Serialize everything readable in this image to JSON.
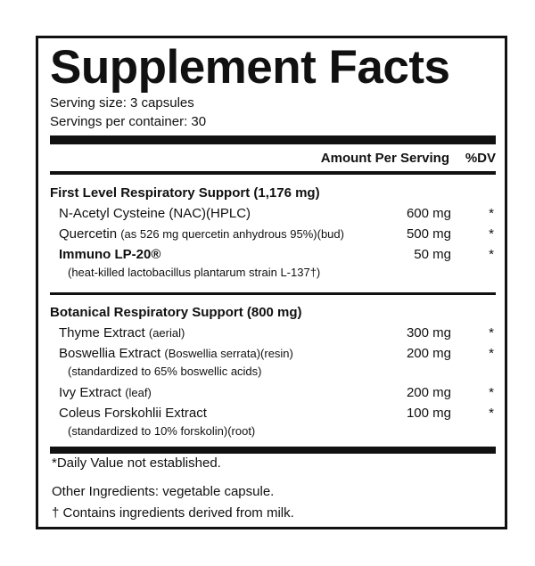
{
  "header": {
    "title": "Supplement Facts",
    "serving_size": "Serving size: 3 capsules",
    "servings_per_container": "Servings per container: 30"
  },
  "columns": {
    "amount": "Amount Per Serving",
    "dv": "%DV"
  },
  "sections": [
    {
      "title": "First Level Respiratory Support (1,176 mg)",
      "items": [
        {
          "name": "N-Acetyl Cysteine (NAC)(HPLC)",
          "amount": "600 mg",
          "dv": "*"
        },
        {
          "name": "Quercetin",
          "note": "(as 526 mg quercetin anhydrous 95%)(bud)",
          "amount": "500 mg",
          "dv": "*"
        },
        {
          "name": "Immuno LP-20®",
          "detail": "(heat-killed lactobacillus plantarum strain L-137†)",
          "amount": "50 mg",
          "dv": "*"
        }
      ]
    },
    {
      "title": "Botanical Respiratory Support (800 mg)",
      "items": [
        {
          "name": "Thyme Extract",
          "note": "(aerial)",
          "amount": "300 mg",
          "dv": "*"
        },
        {
          "name": "Boswellia Extract",
          "note": "(Boswellia serrata)(resin)",
          "detail": "(standardized to 65% boswellic acids)",
          "amount": "200 mg",
          "dv": "*"
        },
        {
          "name": "Ivy Extract",
          "note": "(leaf)",
          "amount": "200 mg",
          "dv": "*"
        },
        {
          "name": "Coleus Forskohlii Extract",
          "detail": "(standardized to 10% forskolin)(root)",
          "amount": "100 mg",
          "dv": "*"
        }
      ]
    }
  ],
  "footnote": "*Daily Value not established.",
  "other_ingredients": "Other Ingredients: vegetable capsule.",
  "allergen": "† Contains ingredients derived from milk."
}
